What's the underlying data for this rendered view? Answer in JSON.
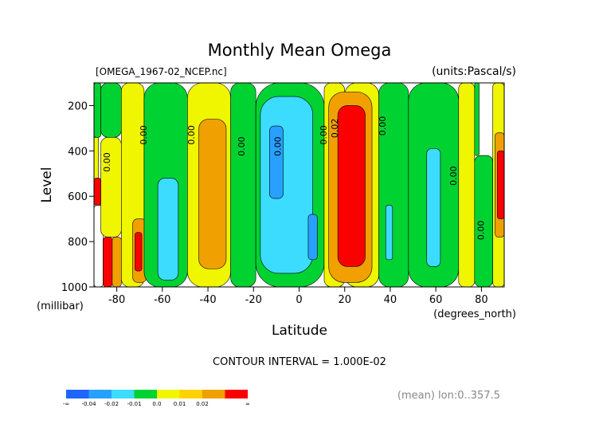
{
  "chart_data": {
    "type": "heatmap",
    "title": "Monthly Mean Omega",
    "file_label": "[OMEGA_1967-02_NCEP.nc]",
    "units_label": "(units:Pascal/s)",
    "xlabel": "Latitude",
    "x_units": "(degrees_north)",
    "ylabel": "Level",
    "y_units": "(millibar)",
    "xlim": [
      -90,
      90
    ],
    "ylim": [
      1000,
      100
    ],
    "x_ticks": [
      -80,
      -60,
      -40,
      -20,
      0,
      20,
      40,
      60,
      80
    ],
    "x_tick_labels": [
      "-80",
      "-60",
      "-40",
      "-20",
      "0",
      "20",
      "40",
      "60",
      "80"
    ],
    "y_ticks": [
      200,
      400,
      600,
      800,
      1000
    ],
    "y_tick_labels": [
      "200",
      "400",
      "600",
      "800",
      "1000"
    ],
    "contour_interval_label": "CONTOUR INTERVAL = 1.000E-02",
    "mean_label": "(mean) lon:0..357.5",
    "colorbar": {
      "colors": [
        "#1e64ff",
        "#28a0ff",
        "#3cdcff",
        "#00d232",
        "#f0f500",
        "#ffd200",
        "#f0a000",
        "#fa0000"
      ],
      "labels": [
        "-∞",
        "-0.04",
        "-0.02",
        "-0.01",
        "0.0",
        "0.01",
        "0.02",
        "∞"
      ],
      "label_positions": [
        0,
        1,
        2,
        3,
        4,
        5,
        6,
        8
      ]
    },
    "contour_labels": [
      {
        "text": "0.00",
        "lat": -83,
        "lev": 450
      },
      {
        "text": "0.00",
        "lat": -67,
        "lev": 330
      },
      {
        "text": "0.00",
        "lat": -46,
        "lev": 330
      },
      {
        "text": "0.00",
        "lat": -24,
        "lev": 380
      },
      {
        "text": "0.00",
        "lat": -8,
        "lev": 380
      },
      {
        "text": "0.00",
        "lat": 12,
        "lev": 330
      },
      {
        "text": "0.02",
        "lat": 17,
        "lev": 300
      },
      {
        "text": "0.00",
        "lat": 38,
        "lev": 290
      },
      {
        "text": "0.00",
        "lat": 69,
        "lev": 510
      },
      {
        "text": "0.00",
        "lat": 81,
        "lev": 750
      }
    ],
    "color_bands": [
      {
        "lat": [
          -90,
          -87
        ],
        "lev": [
          100,
          340
        ],
        "color": "#00d232"
      },
      {
        "lat": [
          -90,
          -88
        ],
        "lev": [
          340,
          550
        ],
        "color": "#f0f500"
      },
      {
        "lat": [
          -90,
          -87
        ],
        "lev": [
          520,
          640
        ],
        "color": "#fa0000"
      },
      {
        "lat": [
          -90,
          -86
        ],
        "lev": [
          640,
          1000
        ],
        "color": "#ffffff"
      },
      {
        "lat": [
          -86,
          -82
        ],
        "lev": [
          780,
          1000
        ],
        "color": "#fa0000"
      },
      {
        "lat": [
          -87,
          -78
        ],
        "lev": [
          100,
          340
        ],
        "color": "#00d232"
      },
      {
        "lat": [
          -87,
          -78
        ],
        "lev": [
          340,
          780
        ],
        "color": "#f0f500"
      },
      {
        "lat": [
          -82,
          -78
        ],
        "lev": [
          780,
          1000
        ],
        "color": "#f0a000"
      },
      {
        "lat": [
          -78,
          -68
        ],
        "lev": [
          100,
          1000
        ],
        "color": "#f0f500"
      },
      {
        "lat": [
          -73,
          -67
        ],
        "lev": [
          700,
          980
        ],
        "color": "#f0a000"
      },
      {
        "lat": [
          -72,
          -69
        ],
        "lev": [
          760,
          930
        ],
        "color": "#fa0000"
      },
      {
        "lat": [
          -68,
          -49
        ],
        "lev": [
          100,
          1000
        ],
        "color": "#00d232"
      },
      {
        "lat": [
          -62,
          -53
        ],
        "lev": [
          520,
          970
        ],
        "color": "#3cdcff"
      },
      {
        "lat": [
          -49,
          -30
        ],
        "lev": [
          100,
          1000
        ],
        "color": "#f0f500"
      },
      {
        "lat": [
          -44,
          -32
        ],
        "lev": [
          260,
          920
        ],
        "color": "#f0a000"
      },
      {
        "lat": [
          -30,
          -19
        ],
        "lev": [
          100,
          1000
        ],
        "color": "#00d232"
      },
      {
        "lat": [
          -19,
          11
        ],
        "lev": [
          100,
          1000
        ],
        "color": "#00d232"
      },
      {
        "lat": [
          -17,
          6
        ],
        "lev": [
          160,
          940
        ],
        "color": "#3cdcff"
      },
      {
        "lat": [
          -13,
          -7
        ],
        "lev": [
          290,
          610
        ],
        "color": "#28a0ff"
      },
      {
        "lat": [
          4,
          8
        ],
        "lev": [
          680,
          880
        ],
        "color": "#28a0ff"
      },
      {
        "lat": [
          11,
          20
        ],
        "lev": [
          100,
          1000
        ],
        "color": "#f0f500"
      },
      {
        "lat": [
          20,
          35
        ],
        "lev": [
          100,
          1000
        ],
        "color": "#f0f500"
      },
      {
        "lat": [
          13,
          32
        ],
        "lev": [
          140,
          980
        ],
        "color": "#f0a000"
      },
      {
        "lat": [
          17,
          29
        ],
        "lev": [
          200,
          910
        ],
        "color": "#fa0000"
      },
      {
        "lat": [
          35,
          48
        ],
        "lev": [
          100,
          1000
        ],
        "color": "#00d232"
      },
      {
        "lat": [
          38,
          41
        ],
        "lev": [
          640,
          880
        ],
        "color": "#3cdcff"
      },
      {
        "lat": [
          48,
          70
        ],
        "lev": [
          100,
          1000
        ],
        "color": "#00d232"
      },
      {
        "lat": [
          56,
          62
        ],
        "lev": [
          390,
          910
        ],
        "color": "#3cdcff"
      },
      {
        "lat": [
          70,
          77
        ],
        "lev": [
          100,
          1000
        ],
        "color": "#f0f500"
      },
      {
        "lat": [
          77,
          79
        ],
        "lev": [
          100,
          420
        ],
        "color": "#00d232"
      },
      {
        "lat": [
          77,
          85
        ],
        "lev": [
          420,
          1000
        ],
        "color": "#00d232"
      },
      {
        "lat": [
          85,
          90
        ],
        "lev": [
          100,
          1000
        ],
        "color": "#f0f500"
      },
      {
        "lat": [
          86,
          90
        ],
        "lev": [
          320,
          780
        ],
        "color": "#f0a000"
      },
      {
        "lat": [
          87,
          90
        ],
        "lev": [
          400,
          700
        ],
        "color": "#fa0000"
      }
    ]
  }
}
